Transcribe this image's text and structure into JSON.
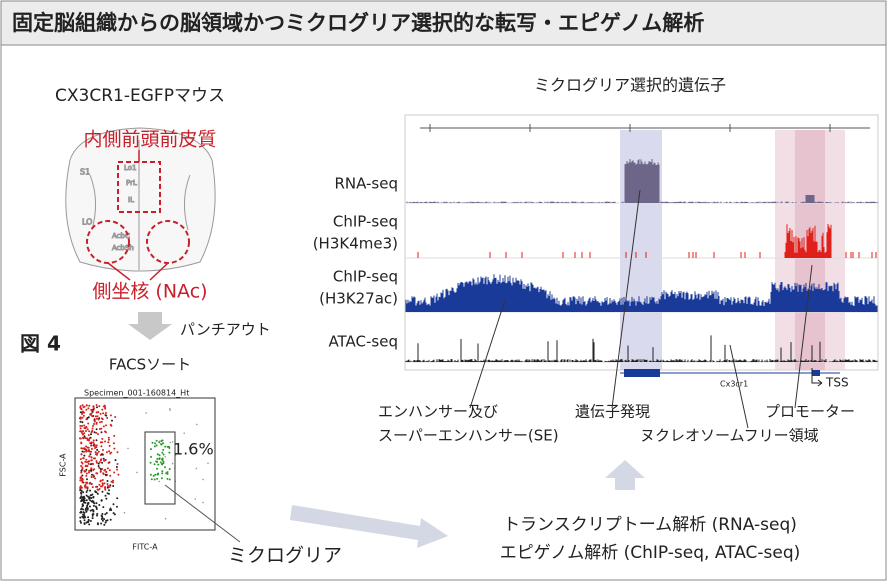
{
  "title": "固定脳組織からの脳領域かつミクログリア選択的な転写・エピゲノム解析",
  "left": {
    "mouse": "CX3CR1-EGFPマウス",
    "region_mpfc": "内側前頭前皮質",
    "region_nac": "側坐核 (NAc)",
    "figure_label": "図 4",
    "punch_out": "パンチアウト",
    "facs_sort": "FACSソート",
    "facs": {
      "specimen": "Specimen_001-160814_Ht",
      "y_axis": "FSC-A",
      "x_axis": "FITC-A",
      "gate_percent": "1.6%"
    },
    "microglia": "ミクログリア"
  },
  "right": {
    "title": "ミクログリア選択的遺伝子",
    "tracks": [
      [
        "RNA-seq"
      ],
      [
        "ChIP-seq",
        "(H3K4me3)"
      ],
      [
        "ChIP-seq",
        "(H3K27ac)"
      ],
      [
        "ATAC-seq"
      ]
    ],
    "gene": "Cx3cr1",
    "tss": "TSS",
    "annotations": {
      "enhancer": [
        "エンハンサー及び",
        "スーパーエンハンサー(SE)"
      ],
      "expression": "遺伝子発現",
      "promoter": "プロモーター",
      "nfr": "ヌクレオソームフリー領域"
    },
    "analysis": [
      "トランスクリプトーム解析 (RNA-seq)",
      "エピゲノム解析 (ChIP-seq, ATAC-seq)"
    ]
  }
}
